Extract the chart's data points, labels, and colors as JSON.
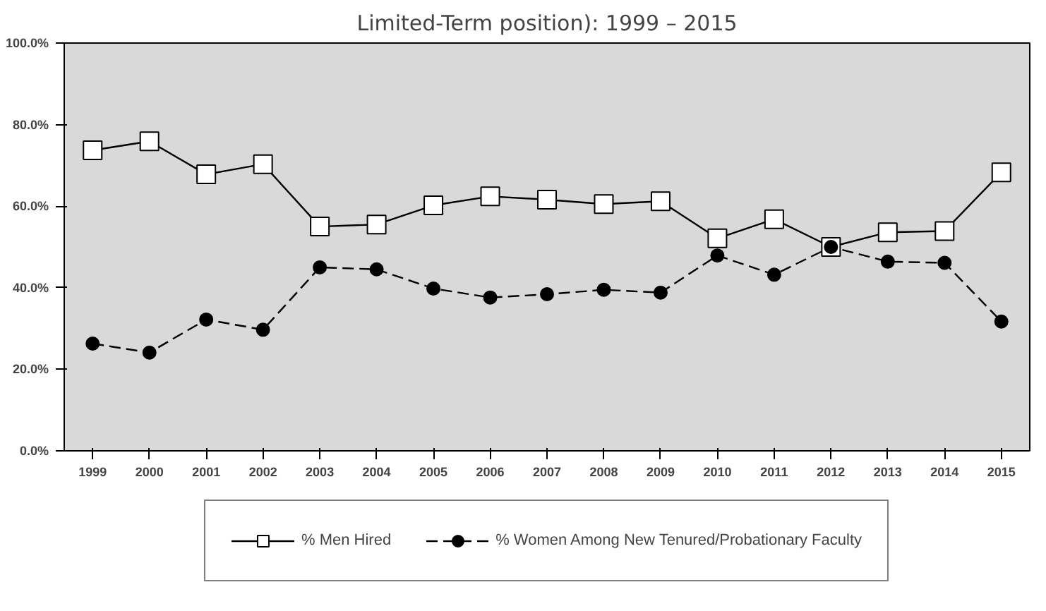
{
  "chart_data": {
    "type": "line",
    "title": "Limited-Term position): 1999 – 2015",
    "categories": [
      "1999",
      "2000",
      "2001",
      "2002",
      "2003",
      "2004",
      "2005",
      "2006",
      "2007",
      "2008",
      "2009",
      "2010",
      "2011",
      "2012",
      "2013",
      "2014",
      "2015"
    ],
    "series": [
      {
        "name": "% Men Hired",
        "color": "#000000",
        "marker": "square",
        "line_style": "solid",
        "values": [
          73.7,
          75.9,
          67.8,
          70.3,
          55.0,
          55.5,
          60.2,
          62.4,
          61.6,
          60.5,
          61.2,
          52.1,
          56.8,
          50.0,
          53.6,
          53.9,
          68.3
        ]
      },
      {
        "name": "% Women Among New Tenured/Probationary Faculty",
        "color": "#000000",
        "marker": "circle",
        "line_style": "dashed",
        "values": [
          26.3,
          24.1,
          32.2,
          29.7,
          45.0,
          44.5,
          39.8,
          37.6,
          38.4,
          39.5,
          38.8,
          47.9,
          43.2,
          50.0,
          46.4,
          46.1,
          31.7
        ]
      }
    ],
    "ylim": [
      0,
      100
    ],
    "yticks": [
      {
        "value": 0,
        "label": "0.0%"
      },
      {
        "value": 20,
        "label": "20.0%"
      },
      {
        "value": 40,
        "label": "40.0%"
      },
      {
        "value": 60,
        "label": "60.0%"
      },
      {
        "value": 80,
        "label": "80.0%"
      },
      {
        "value": 100,
        "label": "100.0%"
      }
    ],
    "grid": false,
    "legend": "bottom"
  }
}
